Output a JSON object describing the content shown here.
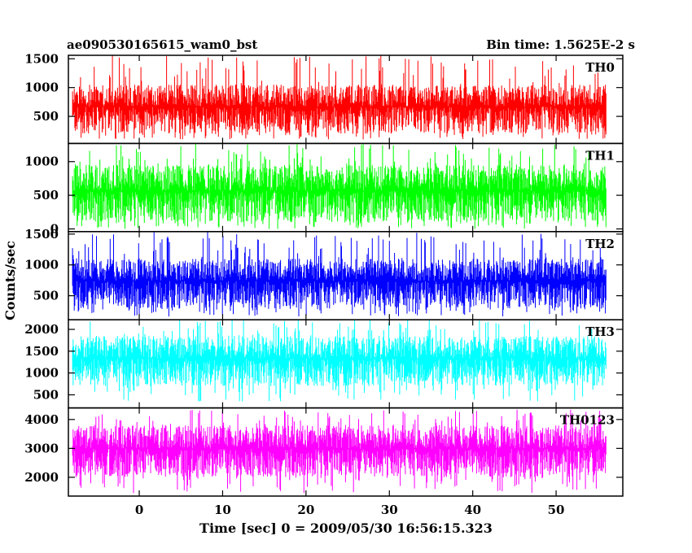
{
  "header": {
    "title": "ae090530165615_wam0_bst",
    "bin_time": "Bin time: 1.5625E-2 s"
  },
  "chart_data": {
    "type": "line",
    "xlabel": "Time [sec] 0 = 2009/05/30 16:56:15.323",
    "ylabel": "Counts/sec",
    "xlim": [
      -8.5,
      58
    ],
    "x_ticks": [
      0,
      10,
      20,
      30,
      40,
      50
    ],
    "x_tick_labels": [
      "0",
      "10",
      "20",
      "30",
      "40",
      "50"
    ],
    "data_x_range": [
      -8,
      56
    ],
    "panels": [
      {
        "name": "TH0",
        "color": "#ff0000",
        "ylim": [
          30,
          1560
        ],
        "y_ticks": [
          500,
          1000,
          1500
        ],
        "y_tick_labels": [
          "500",
          "1000",
          "1500"
        ],
        "typical_range": [
          200,
          1050
        ],
        "spike_range": [
          100,
          1560
        ]
      },
      {
        "name": "TH1",
        "color": "#00ff00",
        "ylim": [
          -40,
          1270
        ],
        "y_ticks": [
          0,
          500,
          1000
        ],
        "y_tick_labels": [
          "0",
          "500",
          "1000"
        ],
        "typical_range": [
          100,
          950
        ],
        "spike_range": [
          0,
          1270
        ]
      },
      {
        "name": "TH2",
        "color": "#0000ff",
        "ylim": [
          110,
          1540
        ],
        "y_ticks": [
          500,
          1000,
          1500
        ],
        "y_tick_labels": [
          "500",
          "1000",
          "1500"
        ],
        "typical_range": [
          300,
          1100
        ],
        "spike_range": [
          160,
          1540
        ]
      },
      {
        "name": "TH3",
        "color": "#00ffff",
        "ylim": [
          200,
          2220
        ],
        "y_ticks": [
          500,
          1000,
          1500,
          2000
        ],
        "y_tick_labels": [
          "500",
          "1000",
          "1500",
          "2000"
        ],
        "typical_range": [
          700,
          1850
        ],
        "spike_range": [
          350,
          2220
        ]
      },
      {
        "name": "TH0123",
        "color": "#ff00ff",
        "ylim": [
          1350,
          4400
        ],
        "y_ticks": [
          2000,
          3000,
          4000
        ],
        "y_tick_labels": [
          "2000",
          "3000",
          "4000"
        ],
        "typical_range": [
          2000,
          3800
        ],
        "spike_range": [
          1450,
          4350
        ]
      }
    ]
  }
}
